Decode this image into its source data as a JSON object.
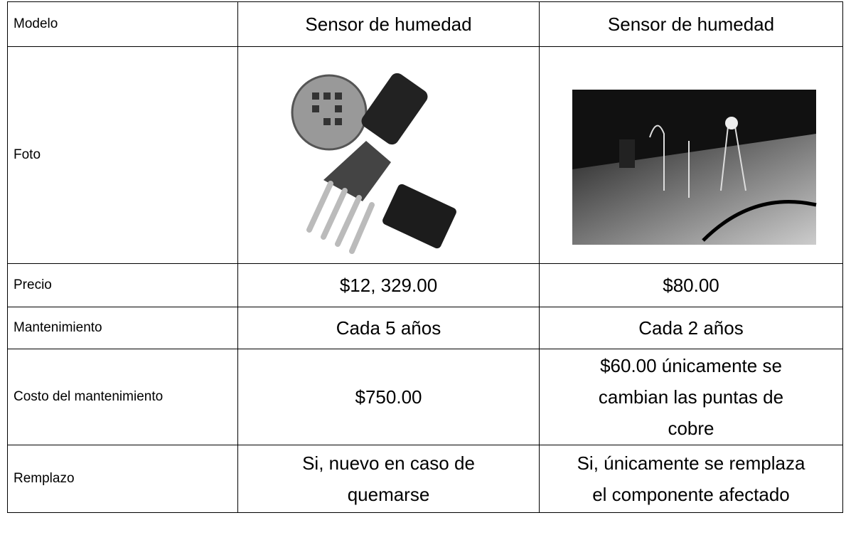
{
  "table": {
    "header": [
      "Modelo",
      "Sensor de humedad",
      "Sensor de humedad"
    ],
    "photo_label": "Foto",
    "rows": [
      {
        "label": "Precio",
        "cells": [
          [
            "$12, 329.00"
          ],
          [
            "$80.00"
          ]
        ]
      },
      {
        "label": "Mantenimiento",
        "cells": [
          [
            "Cada 5 años"
          ],
          [
            "Cada 2 años"
          ]
        ]
      },
      {
        "label": "Costo del mantenimiento",
        "cells": [
          [
            "$750.00"
          ],
          [
            "$60.00 únicamente se",
            "cambian las puntas de",
            "cobre"
          ]
        ]
      },
      {
        "label": "Remplazo",
        "cells": [
          [
            "Si, nuevo en caso de",
            "quemarse"
          ],
          [
            "Si, únicamente se remplaza",
            "el componente afectado"
          ]
        ]
      }
    ]
  }
}
